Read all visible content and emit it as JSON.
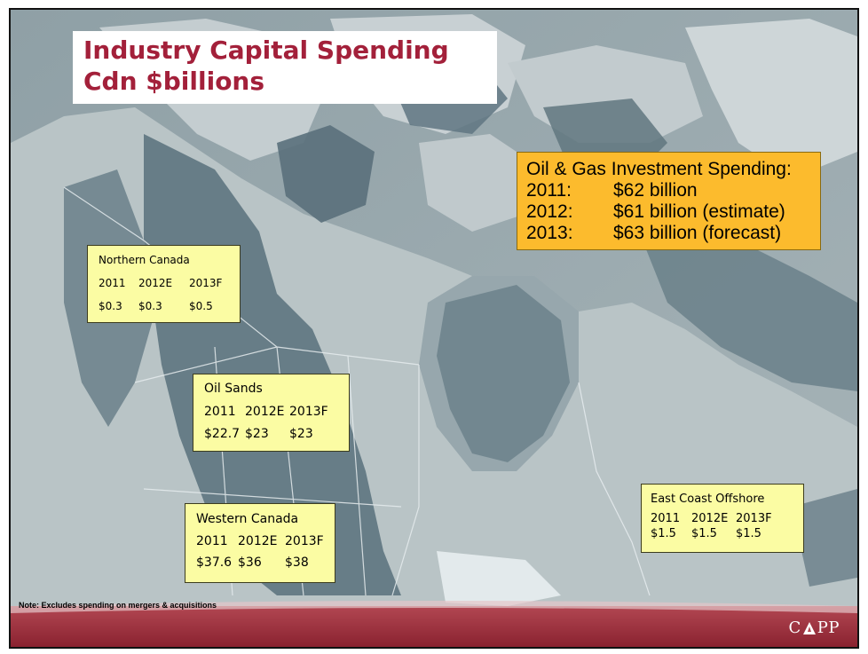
{
  "title": {
    "line1": "Industry Capital Spending",
    "line2": "Cdn $billions"
  },
  "investment": {
    "heading": "Oil & Gas Investment Spending:",
    "rows": [
      {
        "year": "2011:",
        "value": "$62 billion"
      },
      {
        "year": "2012:",
        "value": "$61 billion (estimate)"
      },
      {
        "year": "2013:",
        "value": "$63 billion (forecast)"
      }
    ]
  },
  "regions": {
    "northern": {
      "name": "Northern Canada",
      "years": [
        "2011",
        "2012E",
        "2013F"
      ],
      "values": [
        "$0.3",
        "$0.3",
        "$0.5"
      ]
    },
    "oil_sands": {
      "name": "Oil Sands",
      "years": [
        "2011",
        "2012E",
        "2013F"
      ],
      "values": [
        "$22.7",
        "$23",
        "$23"
      ]
    },
    "western": {
      "name": "Western Canada",
      "years": [
        "2011",
        "2012E",
        "2013F"
      ],
      "values": [
        "$37.6",
        "$36",
        "$38"
      ]
    },
    "east_coast": {
      "name": "East Coast Offshore",
      "years": [
        "2011",
        "2012E",
        "2013F"
      ],
      "values": [
        "$1.5",
        "$1.5",
        "$1.5"
      ]
    }
  },
  "note": "Note: Excludes spending on mergers & acquisitions",
  "logo": {
    "left": "C",
    "right": "PP"
  },
  "colors": {
    "title": "#a3203a",
    "investment_box": "#fcbb2d",
    "region_box": "#fbfca3",
    "footer": "#9b2f3a",
    "map_basin": "#5e7580",
    "map_land": "#b9c4c6"
  }
}
